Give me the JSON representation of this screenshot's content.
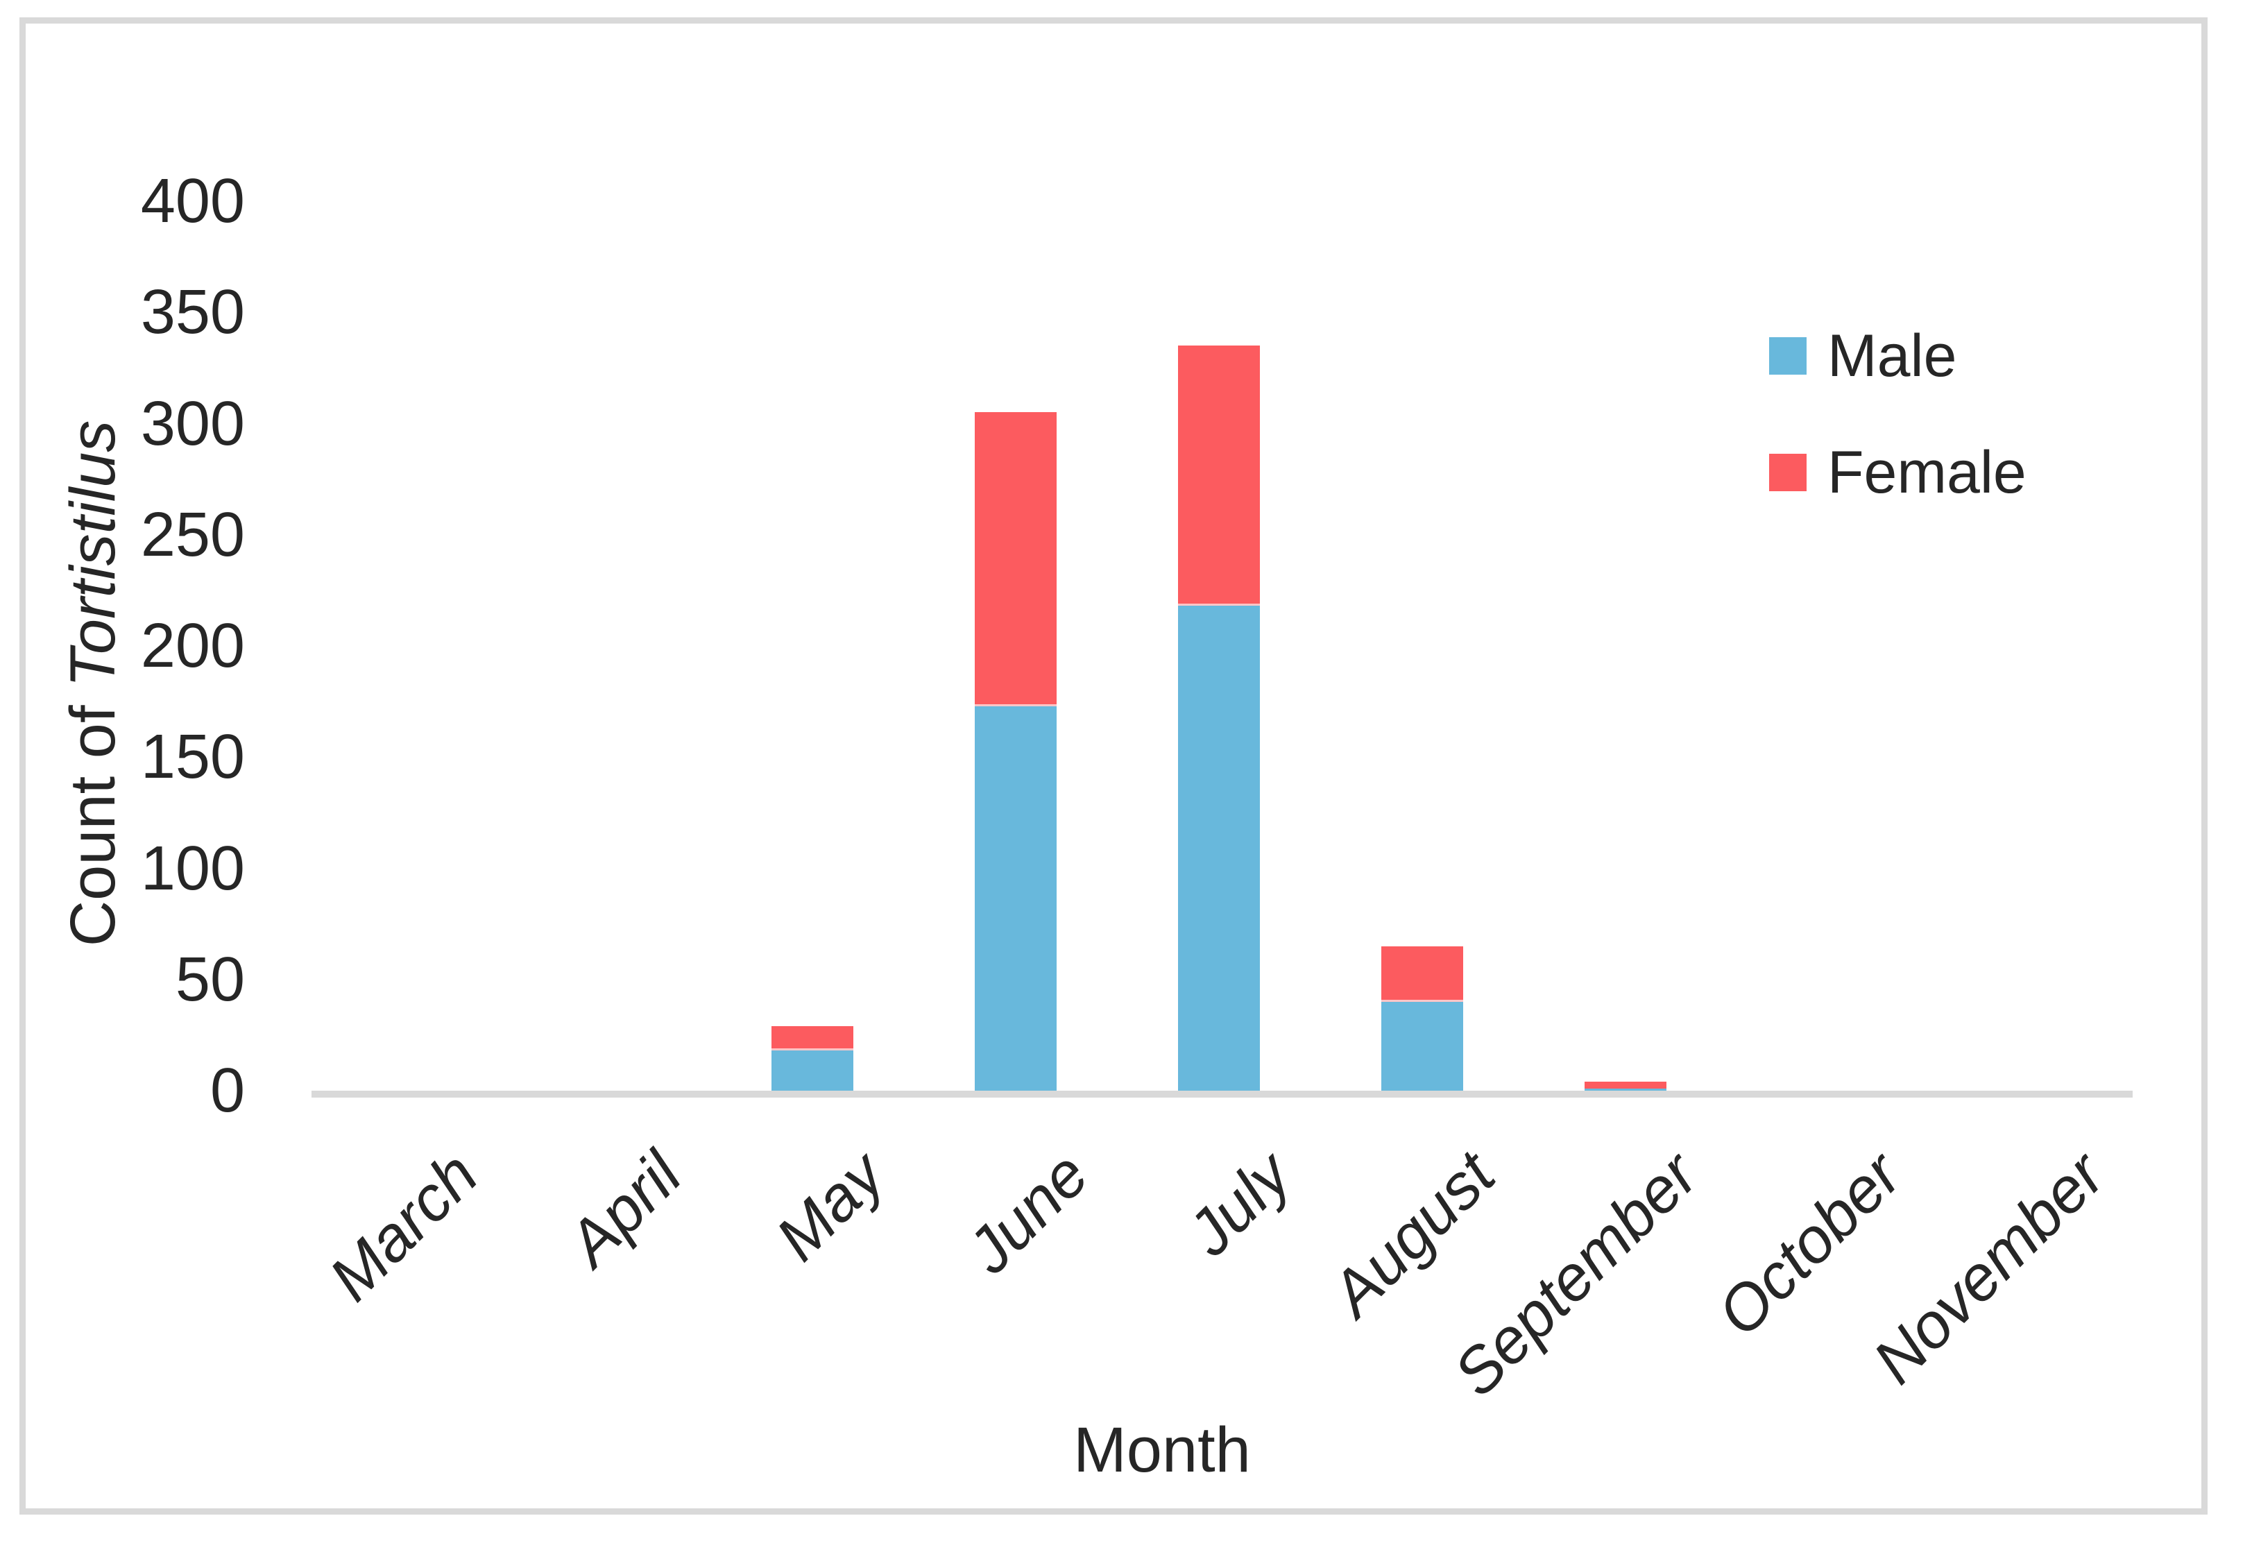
{
  "chart_data": {
    "type": "bar",
    "stacked": true,
    "categories": [
      "March",
      "April",
      "May",
      "June",
      "July",
      "August",
      "September",
      "October",
      "November"
    ],
    "series": [
      {
        "name": "Male",
        "color": "#68B8DC",
        "values": [
          0,
          0,
          18,
          173,
          218,
          40,
          1,
          0,
          0
        ]
      },
      {
        "name": "Female",
        "color": "#FC5B5F",
        "values": [
          0,
          0,
          11,
          132,
          117,
          25,
          3,
          0,
          0
        ]
      }
    ],
    "title": "",
    "xlabel": "Month",
    "ylabel": "Count of Tortistilus",
    "ylabel_regular": "Count of ",
    "ylabel_italic": "Tortistilus",
    "ylim": [
      0,
      400
    ],
    "ytick_step": 50,
    "ytick_labels": [
      "400",
      "350",
      "300",
      "250",
      "200",
      "150",
      "100",
      "50",
      "0"
    ],
    "grid": false,
    "legend_position": "upper-right",
    "axis_line_color": "#D9D9D9",
    "frame_color": "#D9D9D9",
    "text_color": "#262626"
  }
}
